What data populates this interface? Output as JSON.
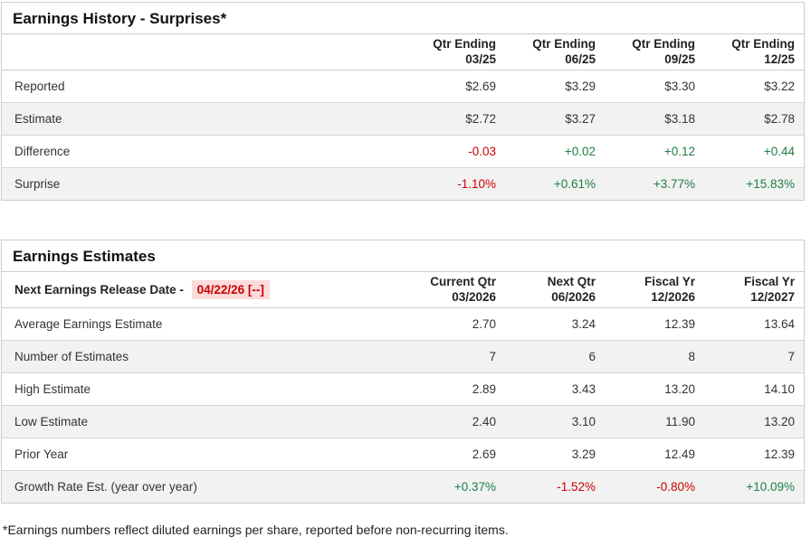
{
  "colors": {
    "negative": "#cc0000",
    "positive": "#1d7d46",
    "release_highlight_bg": "#fbdbdb",
    "row_alt_bg": "#f2f2f2",
    "border": "#cccccc"
  },
  "history": {
    "title": "Earnings History - Surprises*",
    "columns": [
      {
        "label": "Qtr Ending",
        "sub": "03/25"
      },
      {
        "label": "Qtr Ending",
        "sub": "06/25"
      },
      {
        "label": "Qtr Ending",
        "sub": "09/25"
      },
      {
        "label": "Qtr Ending",
        "sub": "12/25"
      }
    ],
    "rows": [
      {
        "label": "Reported",
        "cells": [
          {
            "text": "$2.69"
          },
          {
            "text": "$3.29"
          },
          {
            "text": "$3.30"
          },
          {
            "text": "$3.22"
          }
        ]
      },
      {
        "label": "Estimate",
        "cells": [
          {
            "text": "$2.72"
          },
          {
            "text": "$3.27"
          },
          {
            "text": "$3.18"
          },
          {
            "text": "$2.78"
          }
        ]
      },
      {
        "label": "Difference",
        "cells": [
          {
            "text": "-0.03",
            "color": "#cc0000"
          },
          {
            "text": "+0.02",
            "color": "#1d7d46"
          },
          {
            "text": "+0.12",
            "color": "#1d7d46"
          },
          {
            "text": "+0.44",
            "color": "#1d7d46"
          }
        ]
      },
      {
        "label": "Surprise",
        "cells": [
          {
            "text": "-1.10%",
            "color": "#cc0000"
          },
          {
            "text": "+0.61%",
            "color": "#1d7d46"
          },
          {
            "text": "+3.77%",
            "color": "#1d7d46"
          },
          {
            "text": "+15.83%",
            "color": "#1d7d46"
          }
        ]
      }
    ]
  },
  "estimates": {
    "title": "Earnings Estimates",
    "release_label": "Next Earnings Release Date -",
    "release_date": "04/22/26 [--]",
    "columns": [
      {
        "label": "Current Qtr",
        "sub": "03/2026"
      },
      {
        "label": "Next Qtr",
        "sub": "06/2026"
      },
      {
        "label": "Fiscal Yr",
        "sub": "12/2026"
      },
      {
        "label": "Fiscal Yr",
        "sub": "12/2027"
      }
    ],
    "rows": [
      {
        "label": "Average Earnings Estimate",
        "cells": [
          {
            "text": "2.70"
          },
          {
            "text": "3.24"
          },
          {
            "text": "12.39"
          },
          {
            "text": "13.64"
          }
        ]
      },
      {
        "label": "Number of Estimates",
        "cells": [
          {
            "text": "7"
          },
          {
            "text": "6"
          },
          {
            "text": "8"
          },
          {
            "text": "7"
          }
        ]
      },
      {
        "label": "High Estimate",
        "cells": [
          {
            "text": "2.89"
          },
          {
            "text": "3.43"
          },
          {
            "text": "13.20"
          },
          {
            "text": "14.10"
          }
        ]
      },
      {
        "label": "Low Estimate",
        "cells": [
          {
            "text": "2.40"
          },
          {
            "text": "3.10"
          },
          {
            "text": "11.90"
          },
          {
            "text": "13.20"
          }
        ]
      },
      {
        "label": "Prior Year",
        "cells": [
          {
            "text": "2.69"
          },
          {
            "text": "3.29"
          },
          {
            "text": "12.49"
          },
          {
            "text": "12.39"
          }
        ]
      },
      {
        "label": "Growth Rate Est. (year over year)",
        "cells": [
          {
            "text": "+0.37%",
            "color": "#1d7d46"
          },
          {
            "text": "-1.52%",
            "color": "#cc0000"
          },
          {
            "text": "-0.80%",
            "color": "#cc0000"
          },
          {
            "text": "+10.09%",
            "color": "#1d7d46"
          }
        ]
      }
    ]
  },
  "footnote": "*Earnings numbers reflect diluted earnings per share, reported before non-recurring items."
}
